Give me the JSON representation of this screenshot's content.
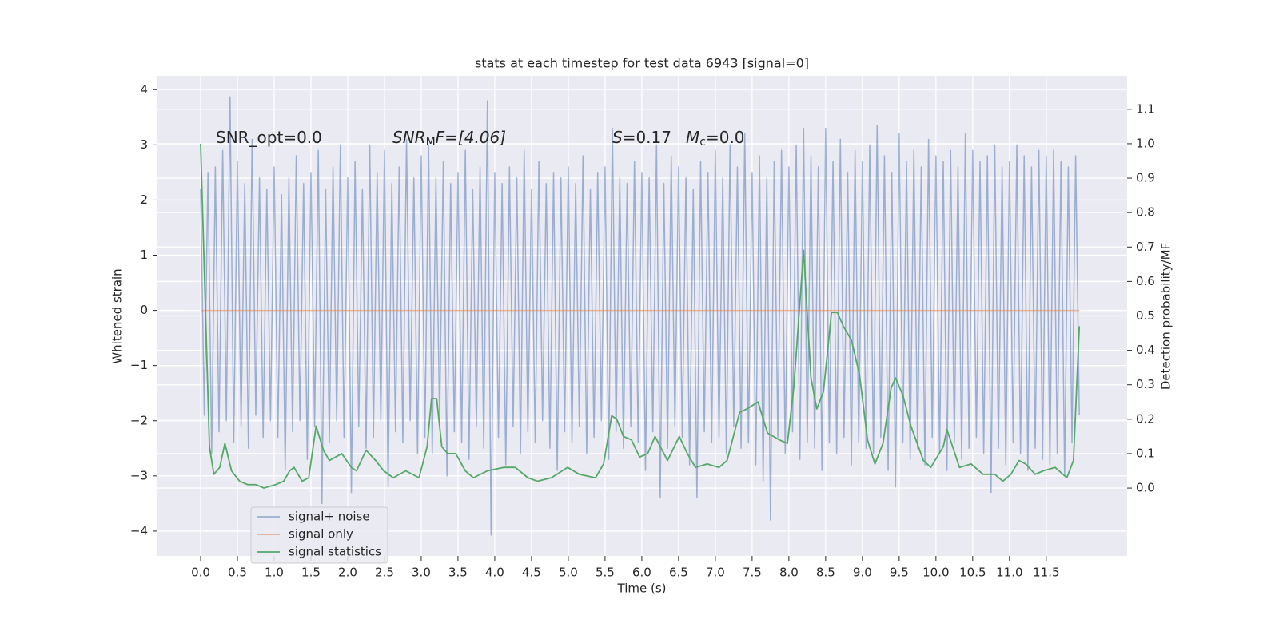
{
  "chart_data": {
    "type": "line",
    "title": "stats at each timestep for test data 6943 [signal=0]",
    "xlabel": "Time (s)",
    "ylabel": "Whitened strain",
    "y2label": "Detection probability/MF",
    "grid": true,
    "legend": "lower left",
    "xlim": [
      -0.587,
      12.6
    ],
    "ylim": [
      -4.45,
      4.25
    ],
    "y2lim": [
      -0.197,
      1.197
    ],
    "xticks": [
      {
        "value": 0,
        "label": "0.0"
      },
      0.5,
      {
        "value": 1,
        "label": "1.0"
      },
      1.5,
      {
        "value": 2,
        "label": "2.0"
      },
      2.5,
      {
        "value": 3,
        "label": "3.0"
      },
      3.5,
      {
        "value": 4,
        "label": "4.0"
      },
      4.5,
      {
        "value": 5,
        "label": "5.0"
      },
      5.5,
      {
        "value": 6,
        "label": "6.0"
      },
      6.5,
      {
        "value": 7,
        "label": "7.0"
      },
      7.5,
      {
        "value": 8,
        "label": "8.0"
      },
      8.5,
      {
        "value": 9,
        "label": "9.0"
      },
      9.5,
      {
        "value": 10,
        "label": "10.0"
      },
      10.5,
      {
        "value": 11,
        "label": "11.0"
      },
      11.5
    ],
    "yticks": [
      {
        "value": -4,
        "label": "−4"
      },
      {
        "value": -3,
        "label": "−3"
      },
      {
        "value": -2,
        "label": "−2"
      },
      {
        "value": -1,
        "label": "−1"
      },
      0,
      1,
      2,
      3,
      4
    ],
    "y2ticks": [
      {
        "value": 0,
        "label": "0.0"
      },
      0.1,
      0.2,
      0.3,
      0.4,
      0.5,
      0.6,
      0.7,
      0.8,
      0.9,
      {
        "value": 1,
        "label": "1.0"
      },
      1.1
    ],
    "annotations": [
      [
        {
          "text": "SNR_opt=0.0",
          "style": "normal"
        }
      ],
      [
        {
          "text": "SNR",
          "style": "italic"
        },
        {
          "text": "M",
          "style": "sub"
        },
        {
          "text": "F=[4.06]",
          "style": "italic-tail"
        }
      ],
      [
        {
          "text": "S",
          "style": "italic"
        },
        {
          "text": "=0.17",
          "style": "normal"
        },
        {
          "text": "M",
          "style": "italic-gap"
        },
        {
          "text": "c",
          "style": "sub"
        },
        {
          "text": "=0.0",
          "style": "normal"
        }
      ]
    ],
    "series": [
      {
        "name": "signal+ noise",
        "color": "#4c72b0",
        "opacity": 0.5,
        "axis": "y",
        "x": [
          0.0,
          0.05,
          0.1,
          0.15,
          0.2,
          0.25,
          0.3,
          0.35,
          0.4,
          0.45,
          0.5,
          0.55,
          0.6,
          0.65,
          0.7,
          0.75,
          0.8,
          0.85,
          0.9,
          0.95,
          1.0,
          1.05,
          1.1,
          1.15,
          1.2,
          1.25,
          1.3,
          1.35,
          1.4,
          1.45,
          1.5,
          1.55,
          1.6,
          1.65,
          1.7,
          1.75,
          1.8,
          1.85,
          1.9,
          1.95,
          2.0,
          2.05,
          2.1,
          2.15,
          2.2,
          2.25,
          2.3,
          2.35,
          2.4,
          2.45,
          2.5,
          2.55,
          2.6,
          2.65,
          2.7,
          2.75,
          2.8,
          2.85,
          2.9,
          2.95,
          3.0,
          3.05,
          3.1,
          3.15,
          3.2,
          3.25,
          3.3,
          3.35,
          3.4,
          3.45,
          3.5,
          3.55,
          3.6,
          3.65,
          3.7,
          3.75,
          3.8,
          3.85,
          3.9,
          3.95,
          4.0,
          4.05,
          4.1,
          4.15,
          4.2,
          4.25,
          4.3,
          4.35,
          4.4,
          4.45,
          4.5,
          4.55,
          4.6,
          4.65,
          4.7,
          4.75,
          4.8,
          4.85,
          4.9,
          4.95,
          5.0,
          5.05,
          5.1,
          5.15,
          5.2,
          5.25,
          5.3,
          5.35,
          5.4,
          5.45,
          5.5,
          5.55,
          5.6,
          5.65,
          5.7,
          5.75,
          5.8,
          5.85,
          5.9,
          5.95,
          6.0,
          6.05,
          6.1,
          6.15,
          6.2,
          6.25,
          6.3,
          6.35,
          6.4,
          6.45,
          6.5,
          6.55,
          6.6,
          6.65,
          6.7,
          6.75,
          6.8,
          6.85,
          6.9,
          6.95,
          7.0,
          7.05,
          7.1,
          7.15,
          7.2,
          7.25,
          7.3,
          7.35,
          7.4,
          7.45,
          7.5,
          7.55,
          7.6,
          7.65,
          7.7,
          7.75,
          7.8,
          7.85,
          7.9,
          7.95,
          8.0,
          8.05,
          8.1,
          8.15,
          8.2,
          8.25,
          8.3,
          8.35,
          8.4,
          8.45,
          8.5,
          8.55,
          8.6,
          8.65,
          8.7,
          8.75,
          8.8,
          8.85,
          8.9,
          8.95,
          9.0,
          9.05,
          9.1,
          9.15,
          9.2,
          9.25,
          9.3,
          9.35,
          9.4,
          9.45,
          9.5,
          9.55,
          9.6,
          9.65,
          9.7,
          9.75,
          9.8,
          9.85,
          9.9,
          9.95,
          10.0,
          10.05,
          10.1,
          10.15,
          10.2,
          10.25,
          10.3,
          10.35,
          10.4,
          10.45,
          10.5,
          10.55,
          10.6,
          10.65,
          10.7,
          10.75,
          10.8,
          10.85,
          10.9,
          10.95,
          11.0,
          11.05,
          11.1,
          11.15,
          11.2,
          11.25,
          11.3,
          11.35,
          11.4,
          11.45,
          11.5,
          11.55,
          11.6,
          11.65,
          11.7,
          11.75,
          11.8,
          11.85,
          11.9,
          11.95
        ],
        "values": [
          2.2,
          -1.9,
          2.5,
          -2.6,
          2.6,
          -2.2,
          2.9,
          -2.0,
          3.87,
          -2.4,
          2.7,
          -2.1,
          2.3,
          -2.5,
          3.1,
          -1.9,
          2.4,
          -2.3,
          2.2,
          -2.0,
          2.6,
          -2.3,
          2.1,
          -2.9,
          2.4,
          -2.2,
          2.8,
          -2.0,
          2.3,
          -2.7,
          2.5,
          -2.1,
          2.9,
          -3.5,
          2.2,
          -2.4,
          2.6,
          -2.0,
          3.0,
          -2.3,
          2.4,
          -3.3,
          2.7,
          -2.1,
          2.2,
          -2.5,
          3.0,
          -2.3,
          2.5,
          -2.0,
          2.9,
          -3.2,
          2.3,
          -2.2,
          2.6,
          -2.4,
          3.1,
          -2.0,
          2.4,
          -2.6,
          2.8,
          -2.3,
          3.0,
          -2.6,
          2.4,
          -2.0,
          2.7,
          -3.0,
          2.3,
          -2.2,
          2.5,
          -2.4,
          2.9,
          -2.7,
          2.2,
          -2.1,
          2.6,
          -2.5,
          3.8,
          -4.07,
          2.5,
          -2.3,
          2.3,
          -2.8,
          2.6,
          -2.1,
          2.4,
          -2.6,
          2.9,
          -2.2,
          2.2,
          -2.4,
          2.7,
          -2.0,
          2.3,
          -2.5,
          2.5,
          -2.9,
          2.4,
          -2.2,
          2.6,
          -2.4,
          2.3,
          -2.1,
          2.8,
          -2.6,
          2.2,
          -2.3,
          2.5,
          -2.0,
          2.6,
          -2.7,
          3.3,
          -2.2,
          2.4,
          -2.5,
          2.3,
          -2.1,
          2.7,
          -2.4,
          2.5,
          -2.9,
          2.4,
          -2.2,
          3.0,
          -3.4,
          2.3,
          -2.5,
          2.8,
          -2.1,
          2.6,
          -2.3,
          2.4,
          -2.8,
          2.2,
          -3.4,
          2.7,
          -2.2,
          2.5,
          -2.4,
          2.9,
          -2.3,
          2.4,
          -2.6,
          3.0,
          -2.1,
          2.6,
          -2.5,
          3.2,
          -2.4,
          2.5,
          -2.8,
          2.8,
          -3.1,
          2.4,
          -3.8,
          2.7,
          -2.3,
          2.9,
          -2.6,
          2.6,
          -2.2,
          3.0,
          -2.7,
          3.3,
          -2.4,
          2.8,
          -2.5,
          2.6,
          -2.9,
          3.3,
          -2.4,
          2.7,
          -2.6,
          3.1,
          -2.3,
          2.5,
          -2.8,
          2.9,
          -2.4,
          2.7,
          -2.5,
          3.0,
          -2.6,
          3.35,
          -2.3,
          2.8,
          -2.9,
          2.5,
          -3.2,
          3.2,
          -2.4,
          2.7,
          -2.7,
          2.9,
          -2.5,
          2.6,
          -2.8,
          3.1,
          -2.3,
          2.8,
          -2.6,
          2.7,
          -2.9,
          2.9,
          -2.4,
          2.6,
          -2.7,
          3.2,
          -2.5,
          2.9,
          -2.3,
          2.7,
          -2.6,
          2.8,
          -3.3,
          3.0,
          -2.5,
          2.6,
          -2.8,
          2.7,
          -2.4,
          3.0,
          -2.6,
          2.8,
          -2.9,
          2.6,
          -2.5,
          2.9,
          -2.7,
          2.8,
          -2.8,
          2.9,
          -2.6,
          2.7,
          -3.0,
          2.6,
          -2.4,
          2.8,
          -1.9
        ]
      },
      {
        "name": "signal only",
        "color": "#dd8452",
        "opacity": 0.6,
        "axis": "y",
        "x": [
          0.0,
          11.95
        ],
        "values": [
          0,
          0
        ]
      },
      {
        "name": "signal statistics",
        "color": "#55a868",
        "opacity": 1,
        "axis": "y2",
        "x": [
          0.0,
          0.12,
          0.18,
          0.26,
          0.33,
          0.42,
          0.53,
          0.64,
          0.75,
          0.86,
          1.02,
          1.13,
          1.21,
          1.27,
          1.38,
          1.47,
          1.57,
          1.67,
          1.75,
          1.92,
          2.05,
          2.12,
          2.25,
          2.38,
          2.49,
          2.62,
          2.79,
          2.97,
          3.08,
          3.14,
          3.21,
          3.28,
          3.36,
          3.47,
          3.6,
          3.71,
          3.9,
          4.12,
          4.28,
          4.45,
          4.58,
          4.77,
          4.99,
          5.15,
          5.37,
          5.48,
          5.59,
          5.66,
          5.75,
          5.86,
          5.97,
          6.08,
          6.18,
          6.35,
          6.51,
          6.62,
          6.73,
          6.89,
          7.05,
          7.16,
          7.33,
          7.43,
          7.58,
          7.71,
          7.87,
          7.98,
          8.07,
          8.2,
          8.3,
          8.38,
          8.47,
          8.58,
          8.66,
          8.74,
          8.85,
          8.96,
          9.07,
          9.17,
          9.28,
          9.39,
          9.45,
          9.55,
          9.66,
          9.83,
          9.93,
          10.1,
          10.15,
          10.32,
          10.48,
          10.64,
          10.8,
          10.91,
          11.02,
          11.13,
          11.22,
          11.35,
          11.46,
          11.62,
          11.78,
          11.87,
          11.95
        ],
        "values": [
          1.0,
          0.12,
          0.04,
          0.06,
          0.13,
          0.05,
          0.02,
          0.01,
          0.01,
          0.0,
          0.01,
          0.02,
          0.05,
          0.06,
          0.02,
          0.03,
          0.18,
          0.11,
          0.08,
          0.1,
          0.06,
          0.05,
          0.11,
          0.08,
          0.05,
          0.03,
          0.05,
          0.03,
          0.12,
          0.26,
          0.26,
          0.12,
          0.1,
          0.1,
          0.05,
          0.03,
          0.05,
          0.06,
          0.06,
          0.03,
          0.02,
          0.03,
          0.06,
          0.04,
          0.03,
          0.07,
          0.21,
          0.2,
          0.15,
          0.14,
          0.09,
          0.1,
          0.15,
          0.08,
          0.15,
          0.1,
          0.06,
          0.07,
          0.06,
          0.08,
          0.22,
          0.23,
          0.25,
          0.16,
          0.14,
          0.13,
          0.3,
          0.69,
          0.32,
          0.23,
          0.28,
          0.51,
          0.51,
          0.47,
          0.43,
          0.33,
          0.14,
          0.07,
          0.13,
          0.29,
          0.32,
          0.27,
          0.18,
          0.08,
          0.06,
          0.12,
          0.17,
          0.06,
          0.07,
          0.04,
          0.04,
          0.02,
          0.04,
          0.08,
          0.07,
          0.04,
          0.05,
          0.06,
          0.03,
          0.08,
          0.47
        ]
      }
    ]
  }
}
